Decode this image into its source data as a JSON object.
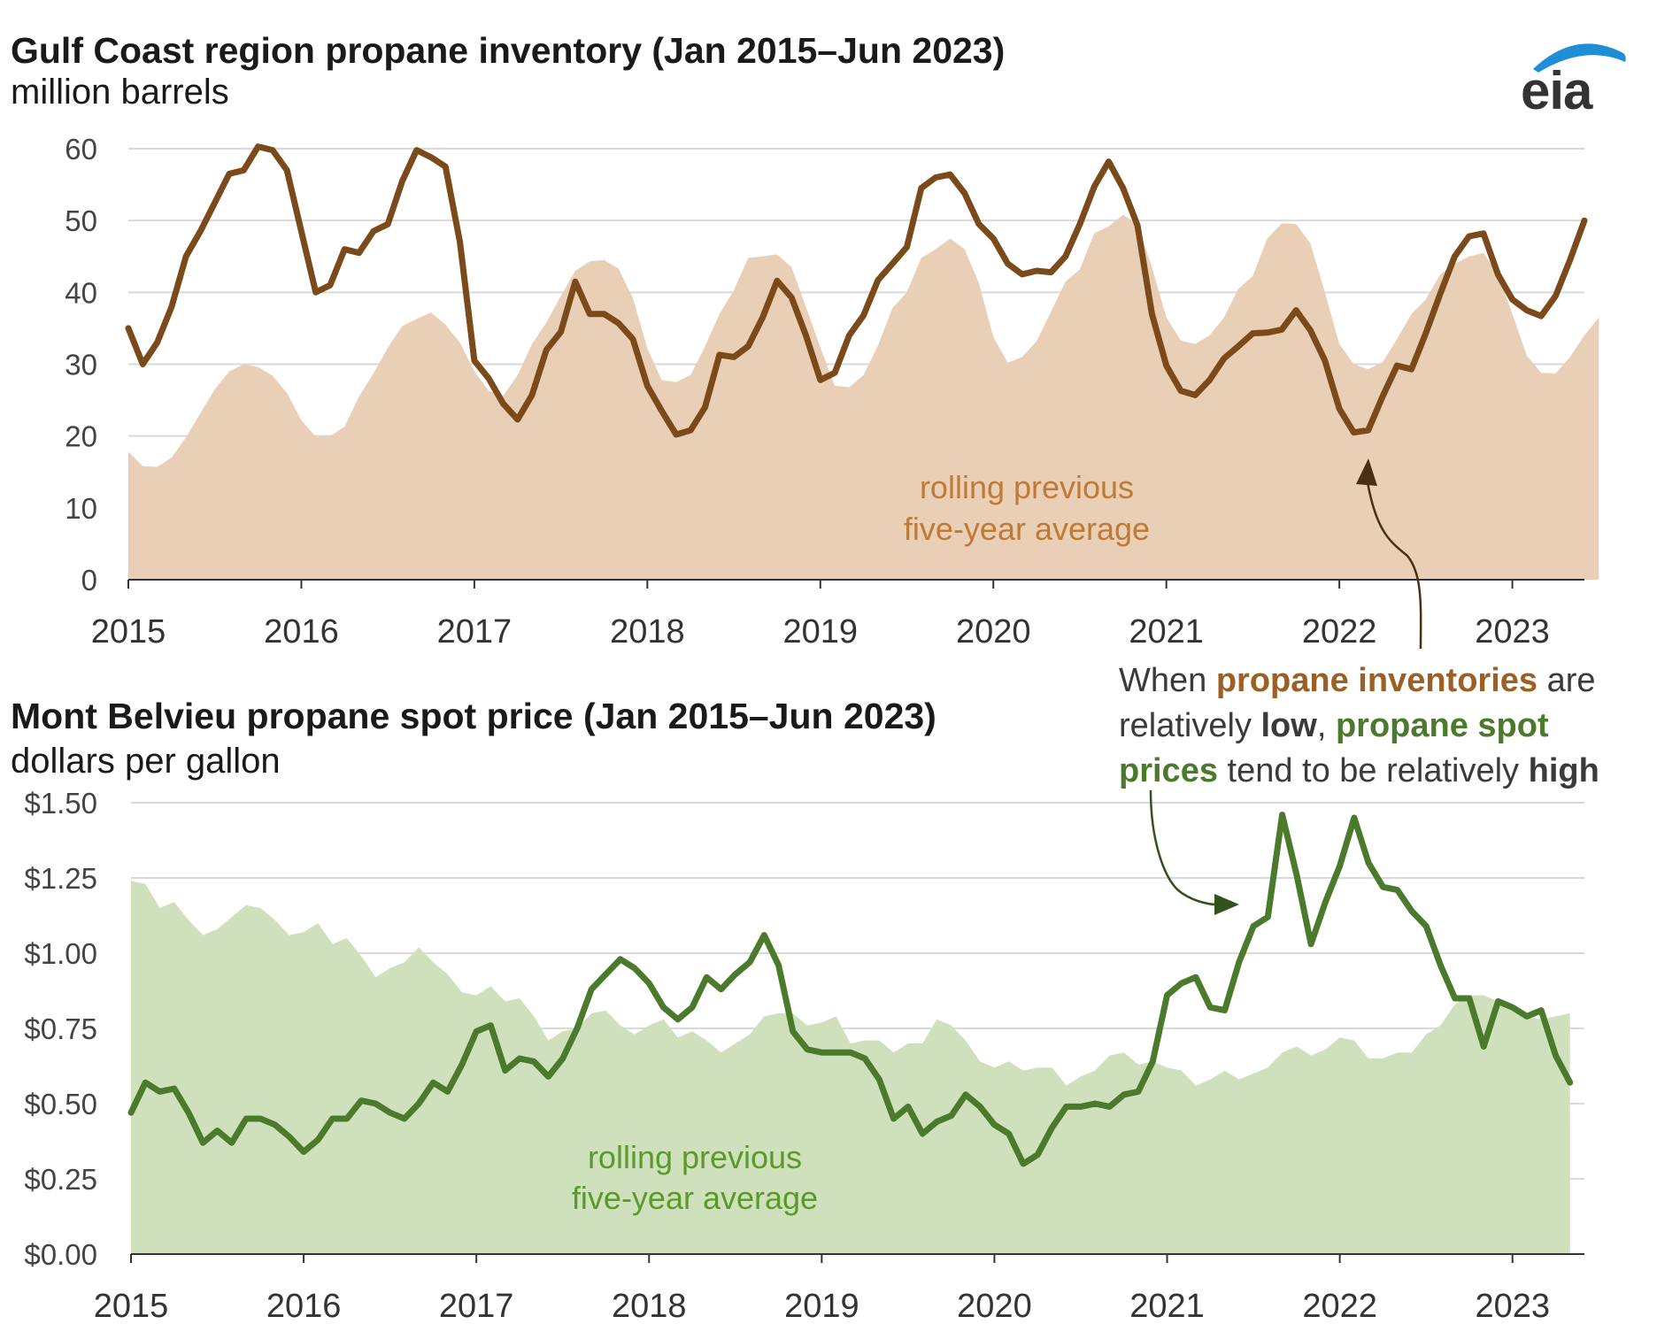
{
  "logo": {
    "text": "eia",
    "swoosh_color": "#1e8fd6"
  },
  "chart_data": [
    {
      "type": "area+line",
      "title": "Gulf Coast region propane inventory (Jan 2015–Jun 2023)",
      "ylabel": "million barrels",
      "ylim": [
        0,
        60
      ],
      "yticks": [
        "0",
        "10",
        "20",
        "30",
        "40",
        "50",
        "60"
      ],
      "xticks": [
        "2015",
        "2016",
        "2017",
        "2018",
        "2019",
        "2020",
        "2021",
        "2022",
        "2023"
      ],
      "x_start": "2015-01",
      "grid": true,
      "area_label": [
        "rolling previous",
        "five-year average"
      ],
      "colors": {
        "line": "#7b4a1b",
        "area": "#e8cfb5",
        "label": "#c07a36"
      },
      "series": [
        {
          "values": [
            35,
            30,
            33,
            38,
            45,
            48.5,
            52.5,
            56.5,
            57,
            60.3,
            59.8,
            57,
            48.5,
            40,
            41,
            46,
            45.5,
            48.5,
            49.5,
            55.5,
            59.8,
            58.8,
            57.5,
            47,
            30.5,
            28,
            24.5,
            22.3,
            25.7,
            32,
            34.5,
            41.5,
            37,
            37,
            35.7,
            33.5,
            27,
            23.5,
            20.2,
            20.8,
            24,
            31.3,
            31,
            32.5,
            36.5,
            41.6,
            39.3,
            34,
            27.8,
            28.8,
            34,
            36.8,
            41.7,
            44,
            46.3,
            54.5,
            56,
            56.4,
            53.8,
            49.5,
            47.5,
            44,
            42.5,
            43,
            42.8,
            45,
            49.5,
            54.7,
            58.2,
            54.5,
            49.3,
            37,
            29.8,
            26.3,
            25.7,
            27.8,
            30.8,
            32.5,
            34.3,
            34.4,
            34.8,
            37.5,
            34.7,
            30.5,
            23.8,
            20.5,
            20.8,
            25.5,
            29.8,
            29.3,
            34.3,
            39.8,
            45,
            47.8,
            48.2,
            42.5,
            39,
            37.5,
            36.7,
            39.5,
            44.5,
            50
          ]
        },
        {
          "values": [
            17.8,
            15.8,
            15.7,
            17,
            19.8,
            23.2,
            26.5,
            29,
            30,
            29.6,
            28.4,
            26,
            22.2,
            19.9,
            20,
            21.3,
            25.5,
            28.7,
            32.3,
            35.3,
            36.3,
            37.2,
            35.5,
            33,
            29,
            26.3,
            25.6,
            28.5,
            32.8,
            35.8,
            39.5,
            43,
            44.3,
            44.5,
            43.3,
            39.2,
            32.2,
            27.8,
            27.5,
            28.5,
            32.5,
            37,
            40.3,
            44.8,
            45,
            45.3,
            43.5,
            38,
            32.3,
            27,
            26.8,
            28.5,
            32.6,
            37.8,
            40,
            44.8,
            46,
            47.5,
            46,
            41.3,
            33.8,
            30.2,
            31,
            33.2,
            37.3,
            41.5,
            43.2,
            48.2,
            49.2,
            50.8,
            49.5,
            43.5,
            36.5,
            33.3,
            32.8,
            34,
            36.5,
            40.5,
            42.3,
            47.5,
            49.6,
            49.5,
            46.8,
            40,
            32.8,
            30,
            29.3,
            30.3,
            33.5,
            37,
            39,
            42.5,
            44,
            45,
            45.5,
            42.5,
            37,
            31.2,
            28.8,
            28.7,
            31,
            34,
            36.5
          ]
        }
      ]
    },
    {
      "type": "area+line",
      "title": "Mont Belvieu propane spot price (Jan 2015–Jun 2023)",
      "ylabel": "dollars per gallon",
      "ylim": [
        0,
        1.5
      ],
      "yticks": [
        "$0.00",
        "$0.25",
        "$0.50",
        "$0.75",
        "$1.00",
        "$1.25",
        "$1.50"
      ],
      "xticks": [
        "2015",
        "2016",
        "2017",
        "2018",
        "2019",
        "2020",
        "2021",
        "2022",
        "2023"
      ],
      "x_start": "2015-01",
      "grid": true,
      "area_label": [
        "rolling previous",
        "five-year average"
      ],
      "colors": {
        "line": "#4b7a2c",
        "area": "#cfe0bc",
        "label": "#5a9a2a"
      },
      "series": [
        {
          "values": [
            0.47,
            0.57,
            0.54,
            0.55,
            0.47,
            0.37,
            0.41,
            0.37,
            0.45,
            0.45,
            0.43,
            0.39,
            0.34,
            0.38,
            0.45,
            0.45,
            0.51,
            0.5,
            0.47,
            0.45,
            0.5,
            0.57,
            0.54,
            0.63,
            0.74,
            0.76,
            0.61,
            0.65,
            0.64,
            0.59,
            0.65,
            0.75,
            0.88,
            0.93,
            0.98,
            0.95,
            0.9,
            0.82,
            0.78,
            0.82,
            0.92,
            0.88,
            0.93,
            0.97,
            1.06,
            0.96,
            0.74,
            0.68,
            0.67,
            0.67,
            0.67,
            0.65,
            0.58,
            0.45,
            0.49,
            0.4,
            0.44,
            0.46,
            0.53,
            0.49,
            0.43,
            0.4,
            0.3,
            0.33,
            0.42,
            0.49,
            0.49,
            0.5,
            0.49,
            0.53,
            0.54,
            0.64,
            0.86,
            0.9,
            0.92,
            0.82,
            0.81,
            0.97,
            1.09,
            1.12,
            1.46,
            1.26,
            1.03,
            1.17,
            1.29,
            1.45,
            1.3,
            1.22,
            1.21,
            1.14,
            1.09,
            0.96,
            0.85,
            0.85,
            0.69,
            0.84,
            0.82,
            0.79,
            0.81,
            0.66,
            0.57
          ]
        },
        {
          "values": [
            1.24,
            1.23,
            1.15,
            1.17,
            1.11,
            1.06,
            1.08,
            1.12,
            1.16,
            1.15,
            1.11,
            1.06,
            1.07,
            1.1,
            1.03,
            1.05,
            0.99,
            0.92,
            0.95,
            0.97,
            1.02,
            0.97,
            0.93,
            0.87,
            0.86,
            0.89,
            0.84,
            0.85,
            0.79,
            0.71,
            0.74,
            0.75,
            0.8,
            0.81,
            0.76,
            0.73,
            0.76,
            0.78,
            0.72,
            0.74,
            0.71,
            0.67,
            0.7,
            0.73,
            0.79,
            0.8,
            0.8,
            0.76,
            0.77,
            0.79,
            0.7,
            0.71,
            0.71,
            0.67,
            0.7,
            0.7,
            0.78,
            0.76,
            0.71,
            0.64,
            0.62,
            0.64,
            0.61,
            0.62,
            0.62,
            0.56,
            0.59,
            0.61,
            0.66,
            0.67,
            0.63,
            0.64,
            0.62,
            0.61,
            0.56,
            0.58,
            0.61,
            0.58,
            0.6,
            0.62,
            0.67,
            0.69,
            0.66,
            0.68,
            0.72,
            0.71,
            0.65,
            0.65,
            0.67,
            0.67,
            0.73,
            0.76,
            0.83,
            0.86,
            0.86,
            0.84,
            0.82,
            0.79,
            0.78,
            0.79,
            0.8
          ]
        }
      ]
    }
  ],
  "annotation": {
    "parts": [
      {
        "text": "When ",
        "bold": false,
        "color": "dark"
      },
      {
        "text": "propane inventories",
        "bold": true,
        "color": "brown"
      },
      {
        "text": " are relatively ",
        "bold": false,
        "color": "dark"
      },
      {
        "text": "low",
        "bold": true,
        "color": "dark"
      },
      {
        "text": ", ",
        "bold": false,
        "color": "dark"
      },
      {
        "text": "propane spot prices",
        "bold": true,
        "color": "green"
      },
      {
        "text": " tend to be relatively ",
        "bold": false,
        "color": "dark"
      },
      {
        "text": "high",
        "bold": true,
        "color": "dark"
      }
    ]
  }
}
